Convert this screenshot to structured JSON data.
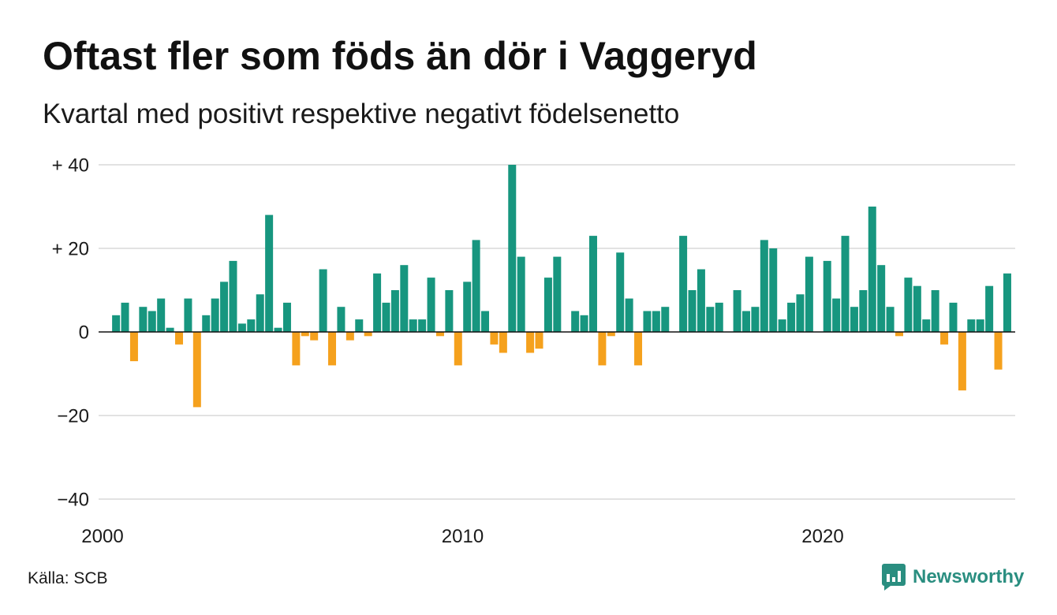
{
  "chart_data": {
    "type": "bar",
    "title": "Oftast fler som föds än dör i Vaggeryd",
    "subtitle": "Kvartal med positivt respektive negativt födelsenetto",
    "xlabel": "",
    "ylabel": "",
    "ylim": [
      -40,
      40
    ],
    "grid": true,
    "x_ticks": [
      "2000",
      "2010",
      "2020"
    ],
    "y_ticks": [
      {
        "value": 40,
        "label": "+ 40"
      },
      {
        "value": 20,
        "label": "+ 20"
      },
      {
        "value": 0,
        "label": "0"
      },
      {
        "value": -20,
        "label": "−20"
      },
      {
        "value": -40,
        "label": "−40"
      }
    ],
    "colors": {
      "positive": "#17967f",
      "negative": "#f5a11d",
      "grid": "#e2e2e2",
      "zero_line": "#111111"
    },
    "x": [
      "2000-Q2",
      "2000-Q3",
      "2000-Q4",
      "2001-Q1",
      "2001-Q2",
      "2001-Q3",
      "2001-Q4",
      "2002-Q1",
      "2002-Q2",
      "2002-Q3",
      "2002-Q4",
      "2003-Q1",
      "2003-Q2",
      "2003-Q3",
      "2003-Q4",
      "2004-Q1",
      "2004-Q2",
      "2004-Q3",
      "2004-Q4",
      "2005-Q1",
      "2005-Q2",
      "2005-Q3",
      "2005-Q4",
      "2006-Q1",
      "2006-Q2",
      "2006-Q3",
      "2006-Q4",
      "2007-Q1",
      "2007-Q2",
      "2007-Q3",
      "2007-Q4",
      "2008-Q1",
      "2008-Q2",
      "2008-Q3",
      "2008-Q4",
      "2009-Q1",
      "2009-Q2",
      "2009-Q3",
      "2009-Q4",
      "2010-Q1",
      "2010-Q2",
      "2010-Q3",
      "2010-Q4",
      "2011-Q1",
      "2011-Q2",
      "2011-Q3",
      "2011-Q4",
      "2012-Q1",
      "2012-Q2",
      "2012-Q3",
      "2012-Q4",
      "2013-Q1",
      "2013-Q2",
      "2013-Q3",
      "2013-Q4",
      "2014-Q1",
      "2014-Q2",
      "2014-Q3",
      "2014-Q4",
      "2015-Q1",
      "2015-Q2",
      "2015-Q3",
      "2015-Q4",
      "2016-Q1",
      "2016-Q2",
      "2016-Q3",
      "2016-Q4",
      "2017-Q1",
      "2017-Q2",
      "2017-Q3",
      "2017-Q4",
      "2018-Q1",
      "2018-Q2",
      "2018-Q3",
      "2018-Q4",
      "2019-Q1",
      "2019-Q2",
      "2019-Q3",
      "2019-Q4",
      "2020-Q1",
      "2020-Q2",
      "2020-Q3",
      "2020-Q4",
      "2021-Q1",
      "2021-Q2",
      "2021-Q3",
      "2021-Q4",
      "2022-Q1",
      "2022-Q2",
      "2022-Q3",
      "2022-Q4",
      "2023-Q1",
      "2023-Q2",
      "2023-Q3",
      "2023-Q4",
      "2024-Q1",
      "2024-Q2",
      "2024-Q3",
      "2024-Q4",
      "2025-Q1"
    ],
    "series": [
      {
        "values": [
          4,
          7,
          -7,
          6,
          5,
          8,
          1,
          -3,
          8,
          -18,
          4,
          8,
          12,
          17,
          2,
          3,
          9,
          28,
          1,
          7,
          -8,
          -1,
          -2,
          15,
          -8,
          6,
          -2,
          3,
          -1,
          14,
          7,
          10,
          16,
          3,
          3,
          13,
          -1,
          10,
          -8,
          12,
          22,
          5,
          -3,
          -5,
          40,
          18,
          -5,
          -4,
          13,
          18,
          0,
          5,
          4,
          23,
          -8,
          -1,
          19,
          8,
          -8,
          5,
          5,
          6,
          0,
          23,
          10,
          15,
          6,
          7,
          0,
          10,
          5,
          6,
          22,
          20,
          3,
          7,
          9,
          18,
          0,
          17,
          8,
          23,
          6,
          10,
          30,
          16,
          6,
          -1,
          13,
          11,
          3,
          10,
          -3,
          7,
          -14,
          3,
          3,
          11,
          -9,
          14
        ]
      }
    ]
  },
  "footer": {
    "source": "Källa: SCB",
    "brand": "Newsworthy",
    "brand_icon": "newsworthy-logo-icon",
    "brand_color": "#2a8e80"
  }
}
